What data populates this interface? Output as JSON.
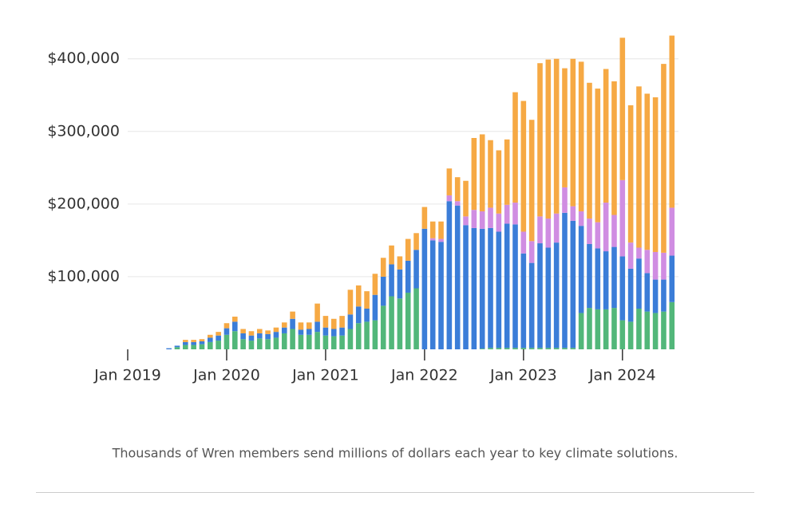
{
  "chart_data": {
    "type": "stacked_bar",
    "categories": [
      "Jan 2019",
      null,
      null,
      null,
      null,
      null,
      null,
      null,
      null,
      null,
      null,
      null,
      "Jan 2020",
      null,
      null,
      null,
      null,
      null,
      null,
      null,
      null,
      null,
      null,
      null,
      "Jan 2021",
      null,
      null,
      null,
      null,
      null,
      null,
      null,
      null,
      null,
      null,
      null,
      "Jan 2022",
      null,
      null,
      null,
      null,
      null,
      null,
      null,
      null,
      null,
      null,
      null,
      "Jan 2023",
      null,
      null,
      null,
      null,
      null,
      null,
      null,
      null,
      null,
      null,
      null,
      "Jan 2024",
      null,
      null,
      null,
      null,
      null,
      null
    ],
    "series": [
      {
        "color": "#52b77a",
        "values": [
          null,
          null,
          null,
          null,
          null,
          0,
          3000,
          6000,
          6000,
          7000,
          10000,
          12000,
          20000,
          25000,
          14000,
          12000,
          15000,
          14000,
          16000,
          22000,
          28000,
          20000,
          20000,
          24000,
          19000,
          18000,
          19000,
          28000,
          36000,
          38000,
          40000,
          60000,
          73000,
          70000,
          78000,
          84000,
          0,
          0,
          0,
          0,
          0,
          0,
          0,
          1000,
          2000,
          2000,
          2000,
          2000,
          2000,
          2000,
          2000,
          2000,
          2000,
          2000,
          2000,
          50000,
          57000,
          55000,
          55000,
          57000,
          40000,
          38000,
          56000,
          52000,
          50000,
          52000,
          65000
        ]
      },
      {
        "color": "#3b7dd8",
        "values": [
          null,
          null,
          null,
          null,
          null,
          1500,
          2000,
          4000,
          4000,
          4000,
          6000,
          7000,
          9000,
          13000,
          8000,
          7000,
          7000,
          7000,
          8000,
          8000,
          14000,
          7000,
          8000,
          14000,
          11000,
          10000,
          11000,
          20000,
          23000,
          18000,
          35000,
          40000,
          44000,
          40000,
          44000,
          53000,
          166000,
          150000,
          148000,
          204000,
          198000,
          171000,
          167000,
          165000,
          165000,
          160000,
          171000,
          170000,
          130000,
          117000,
          144000,
          138000,
          145000,
          186000,
          175000,
          120000,
          88000,
          84000,
          80000,
          84000,
          88000,
          73000,
          69000,
          53000,
          46000,
          44000,
          64000
        ]
      },
      {
        "color": "#d08de2",
        "values": [
          null,
          null,
          null,
          null,
          null,
          0,
          0,
          0,
          0,
          0,
          0,
          0,
          0,
          0,
          0,
          0,
          0,
          0,
          0,
          0,
          0,
          0,
          0,
          0,
          0,
          0,
          0,
          0,
          0,
          0,
          0,
          0,
          0,
          0,
          0,
          0,
          0,
          3000,
          4000,
          8000,
          6000,
          12000,
          25000,
          24000,
          28000,
          25000,
          26000,
          30000,
          30000,
          30000,
          37000,
          40000,
          40000,
          35000,
          20000,
          20000,
          35000,
          36000,
          67000,
          44000,
          105000,
          36000,
          15000,
          32000,
          38000,
          37000,
          66000
        ]
      },
      {
        "color": "#f6a944",
        "values": [
          null,
          null,
          null,
          null,
          null,
          0,
          0,
          3000,
          3000,
          3000,
          4000,
          5000,
          7000,
          7000,
          6000,
          6000,
          6000,
          5000,
          6000,
          7000,
          10000,
          10000,
          9000,
          25000,
          16000,
          14000,
          16000,
          34000,
          29000,
          24000,
          29000,
          26000,
          26000,
          18000,
          30000,
          23000,
          30000,
          23000,
          24000,
          37000,
          33000,
          49000,
          99000,
          106000,
          93000,
          87000,
          90000,
          152000,
          180000,
          167000,
          211000,
          219000,
          213000,
          164000,
          203000,
          206000,
          187000,
          184000,
          184000,
          184000,
          196000,
          189000,
          222000,
          215000,
          213000,
          260000,
          237000
        ]
      }
    ],
    "ylim": [
      0,
      470000
    ],
    "yticks": [
      {
        "value": 100000,
        "label": "$100,000"
      },
      {
        "value": 200000,
        "label": "$200,000"
      },
      {
        "value": 300000,
        "label": "$300,000"
      },
      {
        "value": 400000,
        "label": "$400,000"
      }
    ],
    "grid": true
  },
  "caption": "Thousands of Wren members send millions of dollars each year to key climate solutions."
}
